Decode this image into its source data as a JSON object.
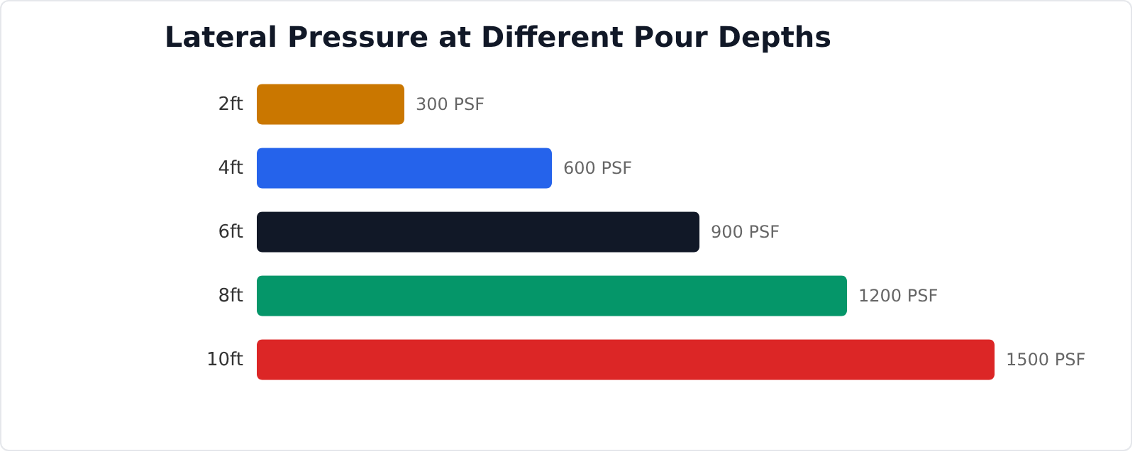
{
  "chart_data": {
    "type": "bar",
    "orientation": "horizontal",
    "title": "Lateral Pressure at Different Pour Depths",
    "categories": [
      "2ft",
      "4ft",
      "6ft",
      "8ft",
      "10ft"
    ],
    "values": [
      300,
      600,
      900,
      1200,
      1500
    ],
    "colors": [
      "#ca7700",
      "#2563eb",
      "#111827",
      "#059669",
      "#dc2626"
    ],
    "value_labels": [
      "300 PSF",
      "600 PSF",
      "900 PSF",
      "1200 PSF",
      "1500 PSF"
    ]
  }
}
